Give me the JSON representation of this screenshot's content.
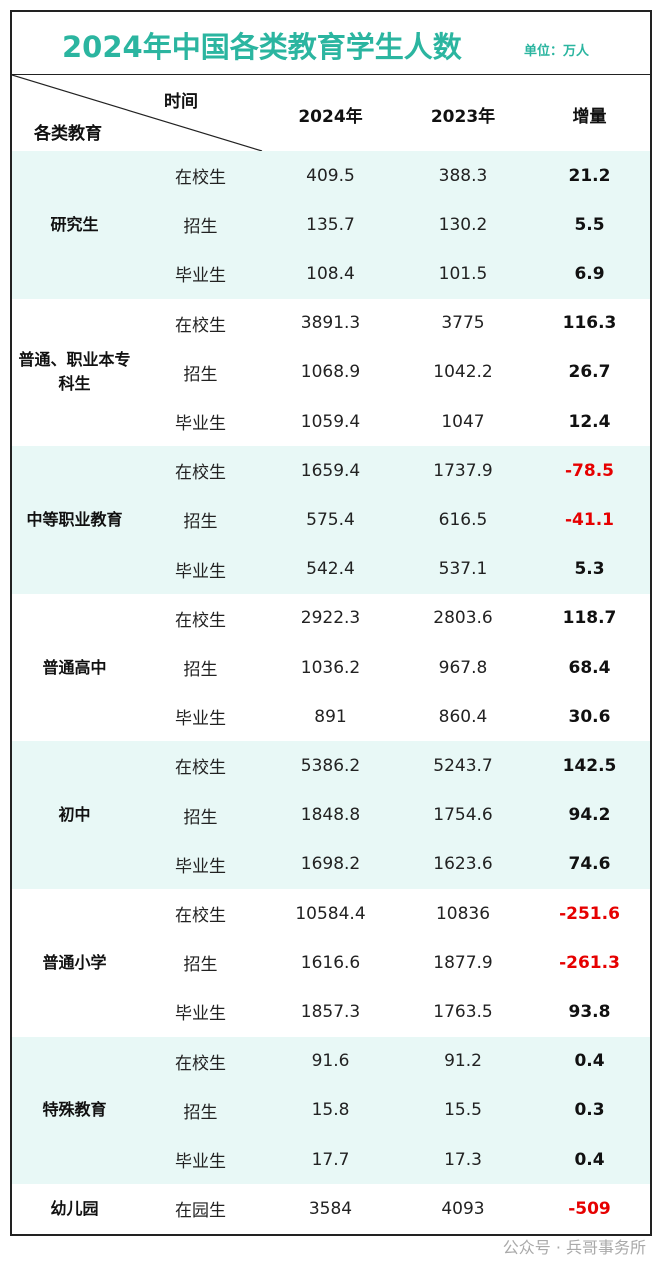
{
  "title": "2024年中国各类教育学生人数",
  "unit": "单位：万人",
  "header": {
    "time": "时间",
    "category": "各类教育",
    "col_2024": "2024年",
    "col_2023": "2023年",
    "col_delta": "增量"
  },
  "colors": {
    "title": "#2bb5a0",
    "band": "#e8f8f6",
    "negative": "#e60000"
  },
  "groups": [
    {
      "name": "研究生",
      "rows": [
        {
          "sub": "在校生",
          "y2024": "409.5",
          "y2023": "388.3",
          "delta": "21.2"
        },
        {
          "sub": "招生",
          "y2024": "135.7",
          "y2023": "130.2",
          "delta": "5.5"
        },
        {
          "sub": "毕业生",
          "y2024": "108.4",
          "y2023": "101.5",
          "delta": "6.9"
        }
      ]
    },
    {
      "name": "普通、职业本专科生",
      "rows": [
        {
          "sub": "在校生",
          "y2024": "3891.3",
          "y2023": "3775",
          "delta": "116.3"
        },
        {
          "sub": "招生",
          "y2024": "1068.9",
          "y2023": "1042.2",
          "delta": "26.7"
        },
        {
          "sub": "毕业生",
          "y2024": "1059.4",
          "y2023": "1047",
          "delta": "12.4"
        }
      ]
    },
    {
      "name": "中等职业教育",
      "rows": [
        {
          "sub": "在校生",
          "y2024": "1659.4",
          "y2023": "1737.9",
          "delta": "-78.5"
        },
        {
          "sub": "招生",
          "y2024": "575.4",
          "y2023": "616.5",
          "delta": "-41.1"
        },
        {
          "sub": "毕业生",
          "y2024": "542.4",
          "y2023": "537.1",
          "delta": "5.3"
        }
      ]
    },
    {
      "name": "普通高中",
      "rows": [
        {
          "sub": "在校生",
          "y2024": "2922.3",
          "y2023": "2803.6",
          "delta": "118.7"
        },
        {
          "sub": "招生",
          "y2024": "1036.2",
          "y2023": "967.8",
          "delta": "68.4"
        },
        {
          "sub": "毕业生",
          "y2024": "891",
          "y2023": "860.4",
          "delta": "30.6"
        }
      ]
    },
    {
      "name": "初中",
      "rows": [
        {
          "sub": "在校生",
          "y2024": "5386.2",
          "y2023": "5243.7",
          "delta": "142.5"
        },
        {
          "sub": "招生",
          "y2024": "1848.8",
          "y2023": "1754.6",
          "delta": "94.2"
        },
        {
          "sub": "毕业生",
          "y2024": "1698.2",
          "y2023": "1623.6",
          "delta": "74.6"
        }
      ]
    },
    {
      "name": "普通小学",
      "rows": [
        {
          "sub": "在校生",
          "y2024": "10584.4",
          "y2023": "10836",
          "delta": "-251.6"
        },
        {
          "sub": "招生",
          "y2024": "1616.6",
          "y2023": "1877.9",
          "delta": "-261.3"
        },
        {
          "sub": "毕业生",
          "y2024": "1857.3",
          "y2023": "1763.5",
          "delta": "93.8"
        }
      ]
    },
    {
      "name": "特殊教育",
      "rows": [
        {
          "sub": "在校生",
          "y2024": "91.6",
          "y2023": "91.2",
          "delta": "0.4"
        },
        {
          "sub": "招生",
          "y2024": "15.8",
          "y2023": "15.5",
          "delta": "0.3"
        },
        {
          "sub": "毕业生",
          "y2024": "17.7",
          "y2023": "17.3",
          "delta": "0.4"
        }
      ]
    },
    {
      "name": "幼儿园",
      "rows": [
        {
          "sub": "在园生",
          "y2024": "3584",
          "y2023": "4093",
          "delta": "-509"
        }
      ]
    }
  ],
  "watermark": "公众号 · 兵哥事务所"
}
